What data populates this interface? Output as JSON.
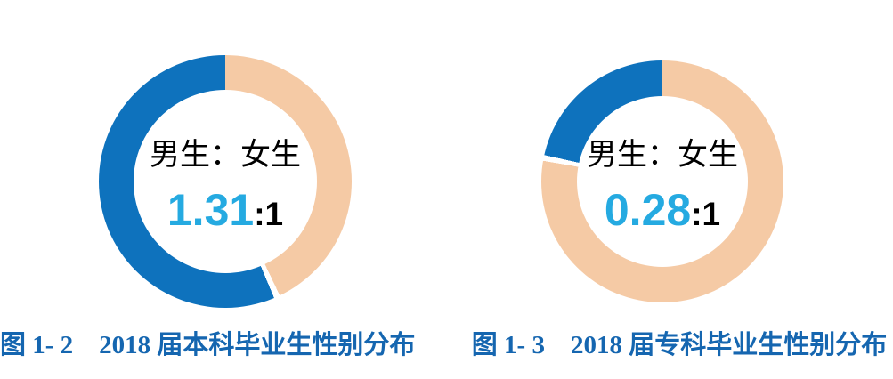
{
  "colors": {
    "background": "#ffffff",
    "male_blue": "#0e72bd",
    "female_peach": "#f5caa5",
    "ratio_cyan": "#25aae1",
    "caption_blue": "#1566b0",
    "center_text": "#000000"
  },
  "chart_data": [
    {
      "type": "pie",
      "subtype": "donut",
      "title": "图 1- 2    2018 届本科毕业生性别分布",
      "figure_label": "图 1- 2",
      "center_text": {
        "label": "男生：女生",
        "ratio": "1.31",
        "suffix": ":1"
      },
      "slices": [
        {
          "label": "男生",
          "value": 1.31,
          "color": "#0e72bd"
        },
        {
          "label": "女生",
          "value": 1,
          "color": "#f5caa5"
        }
      ],
      "layout": {
        "start": "top",
        "male_direction": "counterclockwise",
        "legend": "none"
      }
    },
    {
      "type": "pie",
      "subtype": "donut",
      "title": "图 1- 3    2018 届专科毕业生性别分布",
      "figure_label": "图 1- 3",
      "center_text": {
        "label": "男生：女生",
        "ratio": "0.28",
        "suffix": ":1"
      },
      "slices": [
        {
          "label": "男生",
          "value": 0.28,
          "color": "#0e72bd"
        },
        {
          "label": "女生",
          "value": 1,
          "color": "#f5caa5"
        }
      ],
      "layout": {
        "start": "top",
        "male_direction": "counterclockwise",
        "legend": "none"
      }
    }
  ]
}
